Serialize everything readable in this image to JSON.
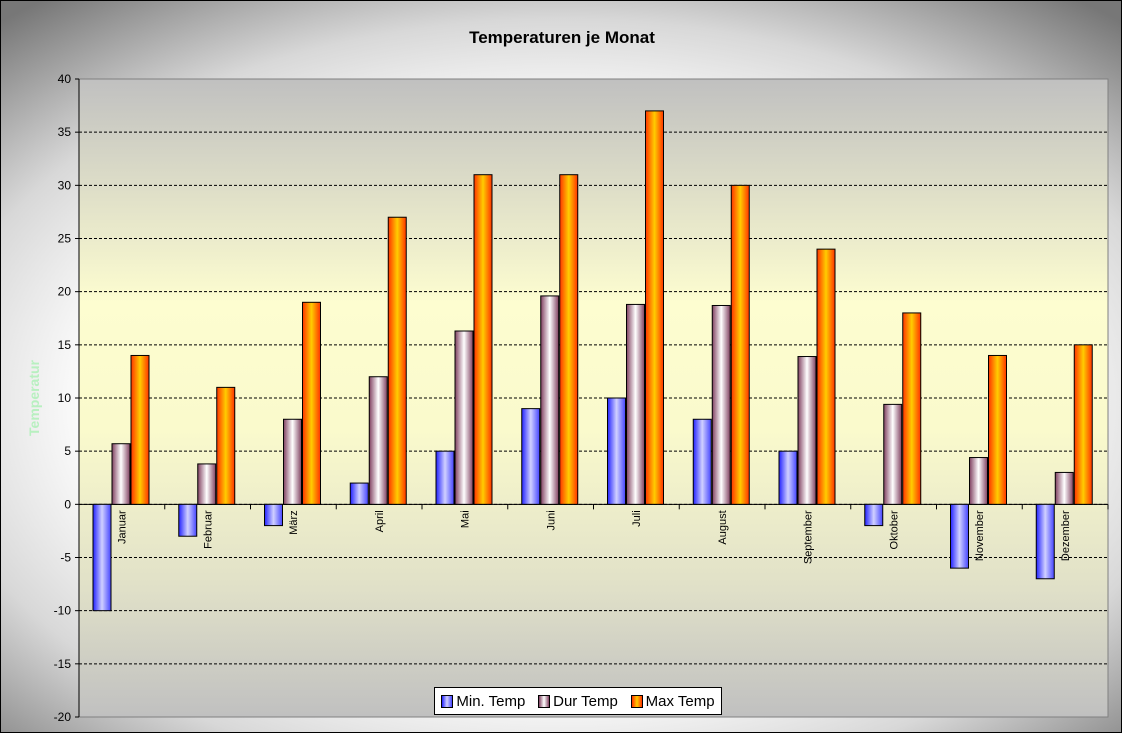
{
  "chart_data": {
    "type": "bar",
    "title": "Temperaturen je Monat",
    "xlabel": "",
    "ylabel": "Temperatur",
    "ylim": [
      -20,
      40
    ],
    "yticks": [
      40,
      35,
      30,
      25,
      20,
      15,
      10,
      5,
      0,
      -5,
      -10,
      -15,
      -20
    ],
    "grid": true,
    "legend_position": "bottom",
    "categories": [
      "Januar",
      "Februar",
      "März",
      "April",
      "Mai",
      "Juni",
      "Juli",
      "August",
      "September",
      "Oktober",
      "November",
      "Dezember"
    ],
    "series": [
      {
        "name": "Min. Temp",
        "color": "#6666ff",
        "values": [
          -10,
          -3,
          -2,
          2,
          5,
          9,
          10,
          8,
          5,
          -2,
          -6,
          -7
        ]
      },
      {
        "name": "Dur Temp",
        "color": "#c8a0b0",
        "values": [
          5.7,
          3.8,
          8,
          12,
          16.3,
          19.6,
          18.8,
          18.7,
          13.9,
          9.4,
          4.4,
          3
        ]
      },
      {
        "name": "Max Temp",
        "color": "#ff8800",
        "values": [
          14,
          11,
          19,
          27,
          31,
          31,
          37,
          30,
          24,
          18,
          14,
          15
        ]
      }
    ]
  }
}
